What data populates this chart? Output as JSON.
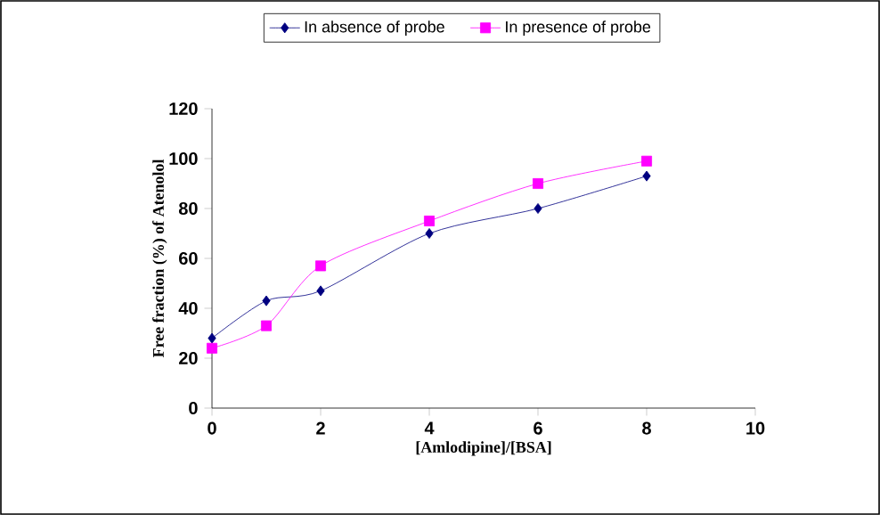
{
  "chart_data": {
    "type": "line",
    "xlabel": "[Amlodipine]/[BSA]",
    "ylabel": "Free fraction (%) of Atenolol",
    "x": [
      0,
      1,
      2,
      4,
      6,
      8
    ],
    "series": [
      {
        "name": "In absence of probe",
        "color": "#000080",
        "marker": "diamond",
        "values": [
          28,
          43,
          47,
          70,
          80,
          93
        ]
      },
      {
        "name": "In presence of probe",
        "color": "#ff00ff",
        "marker": "square",
        "values": [
          24,
          33,
          57,
          75,
          90,
          99
        ]
      }
    ],
    "xlim": [
      0,
      10
    ],
    "xticks": [
      0,
      2,
      4,
      6,
      8,
      10
    ],
    "ylim": [
      0,
      120
    ],
    "yticks": [
      0,
      20,
      40,
      60,
      80,
      100,
      120
    ],
    "legend": "top",
    "grid": false,
    "line_style": "solid"
  }
}
